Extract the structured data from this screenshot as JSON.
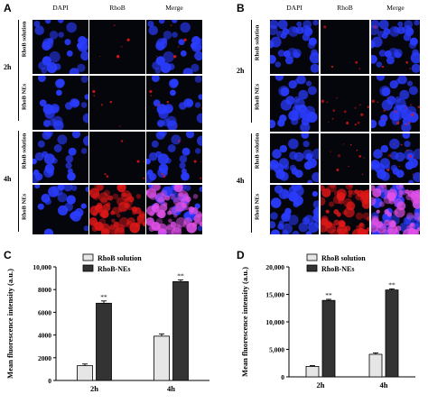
{
  "panel_letters": [
    "A",
    "B",
    "C",
    "D"
  ],
  "channels": [
    "DAPI",
    "RhoB",
    "Merge"
  ],
  "timepoints": [
    "2h",
    "4h"
  ],
  "groups": [
    "RhoB solution",
    "RhoB NEs"
  ],
  "colors": {
    "dapi": "#2a3cff",
    "rhob": "#e01818",
    "merge_magenta": "#e050e8",
    "bar_solution": "#e6e6e6",
    "bar_nes": "#333333"
  },
  "chart_data": [
    {
      "type": "bar",
      "panel": "C",
      "ylabel": "Mean fluorescence intensity (a.u.)",
      "categories": [
        "2h",
        "4h"
      ],
      "ylim": [
        0,
        10000
      ],
      "yticks": [
        0,
        2000,
        4000,
        6000,
        8000,
        10000
      ],
      "ytick_labels": [
        "0",
        "2000",
        "4000",
        "6000",
        "8000",
        "10,000"
      ],
      "legend_position": "top-left",
      "series": [
        {
          "name": "RhoB solution",
          "color": "#e6e6e6",
          "values": [
            1300,
            3900
          ],
          "errors": [
            150,
            200
          ]
        },
        {
          "name": "RhoB-NEs",
          "color": "#333333",
          "values": [
            6800,
            8700
          ],
          "errors": [
            200,
            150
          ]
        }
      ],
      "annotations": [
        "**",
        "**"
      ]
    },
    {
      "type": "bar",
      "panel": "D",
      "ylabel": "Mean fluorescence intensity (a.u.)",
      "categories": [
        "2h",
        "4h"
      ],
      "ylim": [
        0,
        20000
      ],
      "yticks": [
        0,
        5000,
        10000,
        15000,
        20000
      ],
      "ytick_labels": [
        "0",
        "5,000",
        "10,000",
        "15,000",
        "20,000"
      ],
      "legend_position": "top-left",
      "series": [
        {
          "name": "RhoB solution",
          "color": "#e6e6e6",
          "values": [
            1900,
            4100
          ],
          "errors": [
            150,
            250
          ]
        },
        {
          "name": "RhoB-NEs",
          "color": "#333333",
          "values": [
            13900,
            15800
          ],
          "errors": [
            200,
            200
          ]
        }
      ],
      "annotations": [
        "**",
        "**"
      ]
    }
  ]
}
